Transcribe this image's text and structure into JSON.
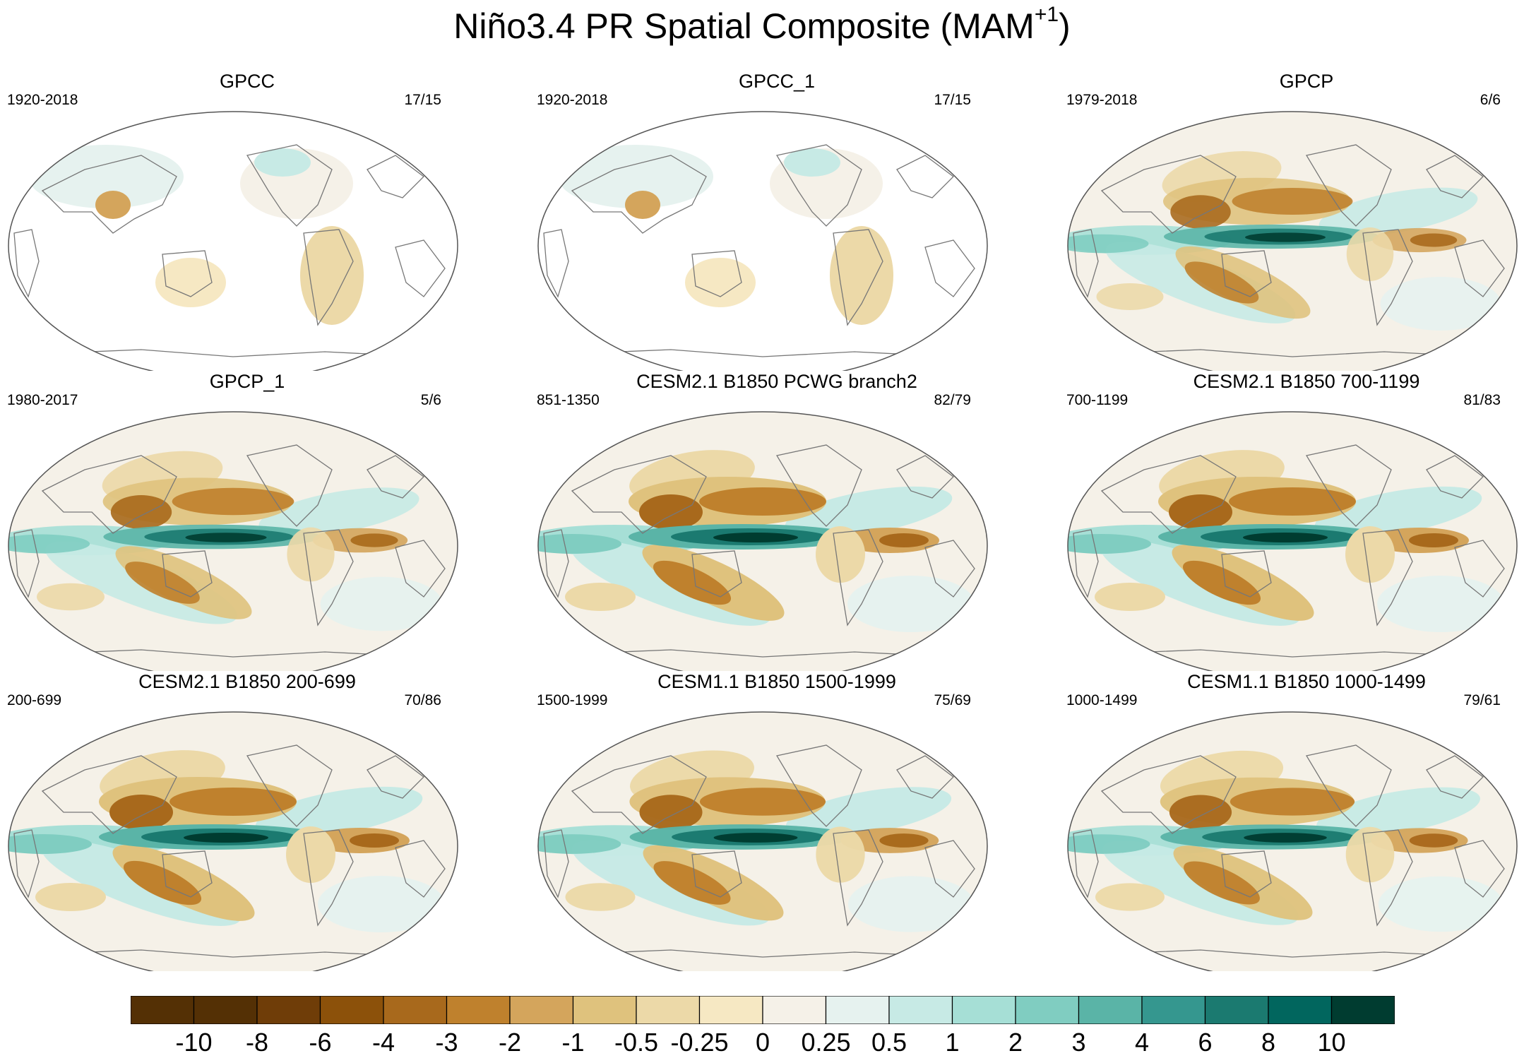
{
  "title": "Niño3.4 PR Spatial Composite (MAM",
  "title_sup": "+1",
  "title_close": ")",
  "panels": [
    {
      "title": "GPCC",
      "period": "1920-2018",
      "count": "17/15",
      "kind": "land",
      "strength": 0.55
    },
    {
      "title": "GPCC_1",
      "period": "1920-2018",
      "count": "17/15",
      "kind": "land",
      "strength": 0.55
    },
    {
      "title": "GPCP",
      "period": "1979-2018",
      "count": "6/6",
      "kind": "full",
      "strength": 0.75
    },
    {
      "title": "GPCP_1",
      "period": "1980-2017",
      "count": "5/6",
      "kind": "full",
      "strength": 0.8
    },
    {
      "title": "CESM2.1 B1850 PCWG branch2",
      "period": "851-1350",
      "count": "82/79",
      "kind": "full",
      "strength": 1.0
    },
    {
      "title": "CESM2.1 B1850 700-1199",
      "period": "700-1199",
      "count": "81/83",
      "kind": "full",
      "strength": 1.0
    },
    {
      "title": "CESM2.1 B1850 200-699",
      "period": "200-699",
      "count": "70/86",
      "kind": "full",
      "strength": 1.0
    },
    {
      "title": "CESM1.1 B1850 1500-1999",
      "period": "1500-1999",
      "count": "75/69",
      "kind": "full",
      "strength": 0.95
    },
    {
      "title": "CESM1.1 B1850 1000-1499",
      "period": "1000-1499",
      "count": "79/61",
      "kind": "full",
      "strength": 0.9
    }
  ],
  "colorbar": {
    "labels": [
      "-10",
      "-8",
      "-6",
      "-4",
      "-3",
      "-2",
      "-1",
      "-0.5",
      "-0.25",
      "0",
      "0.25",
      "0.5",
      "1",
      "2",
      "3",
      "4",
      "6",
      "8",
      "10"
    ],
    "colors": [
      "#543005",
      "#6f3d08",
      "#8c510a",
      "#a8691c",
      "#bf812d",
      "#d4a55c",
      "#dfc27d",
      "#ecd9a8",
      "#f6e8c3",
      "#f5f1e8",
      "#e6f2ef",
      "#c7eae5",
      "#a6dfd6",
      "#80cdc1",
      "#5ab4a7",
      "#35978f",
      "#1b7a70",
      "#01665e",
      "#003c30"
    ]
  }
}
